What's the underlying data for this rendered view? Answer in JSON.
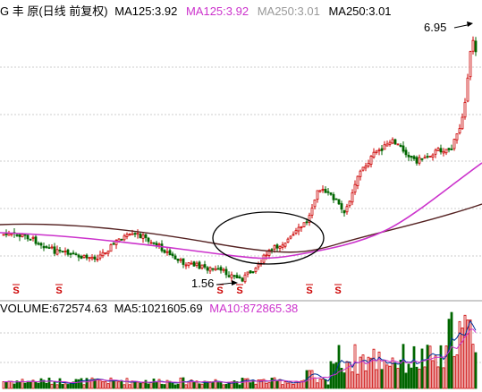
{
  "header": {
    "title": "G 丰 原(日线 前复权)",
    "ma_items": [
      {
        "label": "MA125:3.92",
        "color": "#000000"
      },
      {
        "label": "MA125:3.92",
        "color": "#cc33cc"
      },
      {
        "label": "MA250:3.01",
        "color": "#999999"
      },
      {
        "label": "MA250:3.01",
        "color": "#000000"
      }
    ]
  },
  "volume_header": {
    "volume_label": "VOLUME:672574.63",
    "ma5_label": "MA5:1021605.69",
    "ma10_label": "MA10:872865.38",
    "ma10_color": "#cc33cc"
  },
  "annotations": {
    "high_label": "6.95",
    "low_label": "1.56"
  },
  "signal_glyph": "S",
  "signal_count": 6,
  "colors": {
    "up": "#cc0000",
    "down": "#006600",
    "ma_purple": "#cc33cc",
    "ma_dark": "#552222",
    "grid": "#cccccc"
  }
}
